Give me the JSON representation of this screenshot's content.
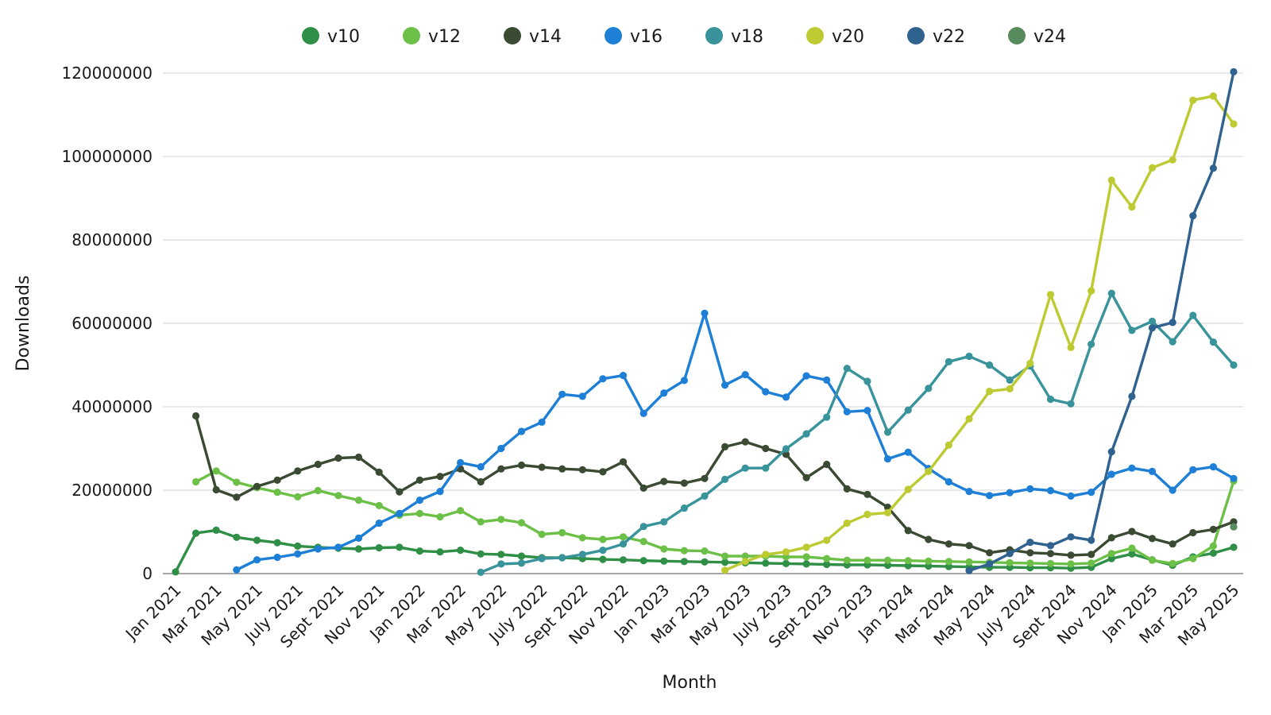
{
  "chart_data": {
    "type": "line",
    "title": "",
    "xlabel": "Month",
    "ylabel": "Downloads",
    "legend_position": "top",
    "grid": "horizontal",
    "ylim": [
      0,
      120000000
    ],
    "y_tick_values": [
      "0",
      "20000000",
      "40000000",
      "60000000",
      "80000000",
      "100000000",
      "120000000"
    ],
    "x_tick_labels": [
      "Jan 2021",
      "Mar 2021",
      "May 2021",
      "July 2021",
      "Sept 2021",
      "Nov 2021",
      "Jan 2022",
      "Mar 2022",
      "May 2022",
      "July 2022",
      "Sept 2022",
      "Nov 2022",
      "Jan 2023",
      "Mar 2023",
      "May 2023",
      "July 2023",
      "Sept 2023",
      "Nov 2023",
      "Jan 2024",
      "Mar 2024",
      "May 2024",
      "July 2024",
      "Sept 2024",
      "Nov 2024",
      "Jan 2025",
      "Mar 2025",
      "May 2025"
    ],
    "months": [
      "Jan 2021",
      "Feb 2021",
      "Mar 2021",
      "Apr 2021",
      "May 2021",
      "Jun 2021",
      "Jul 2021",
      "Aug 2021",
      "Sep 2021",
      "Oct 2021",
      "Nov 2021",
      "Dec 2021",
      "Jan 2022",
      "Feb 2022",
      "Mar 2022",
      "Apr 2022",
      "May 2022",
      "Jun 2022",
      "Jul 2022",
      "Aug 2022",
      "Sep 2022",
      "Oct 2022",
      "Nov 2022",
      "Dec 2022",
      "Jan 2023",
      "Feb 2023",
      "Mar 2023",
      "Apr 2023",
      "May 2023",
      "Jun 2023",
      "Jul 2023",
      "Aug 2023",
      "Sep 2023",
      "Oct 2023",
      "Nov 2023",
      "Dec 2023",
      "Jan 2024",
      "Feb 2024",
      "Mar 2024",
      "Apr 2024",
      "May 2024",
      "Jun 2024",
      "Jul 2024",
      "Aug 2024",
      "Sep 2024",
      "Oct 2024",
      "Nov 2024",
      "Dec 2024",
      "Jan 2025",
      "Feb 2025",
      "Mar 2025",
      "Apr 2025",
      "May 2025"
    ],
    "values_unit": "millions_of_downloads",
    "series": [
      {
        "name": "v10",
        "color": "#2f8f46",
        "values": [
          0.4,
          9.7,
          10.4,
          8.7,
          8.0,
          7.4,
          6.6,
          6.3,
          6.1,
          5.9,
          6.2,
          6.3,
          5.4,
          5.2,
          5.6,
          4.7,
          4.6,
          4.2,
          3.8,
          3.8,
          3.6,
          3.4,
          3.3,
          3.1,
          3.0,
          2.9,
          2.8,
          2.7,
          2.6,
          2.5,
          2.4,
          2.3,
          2.2,
          2.1,
          2.1,
          2.0,
          1.9,
          1.8,
          1.7,
          1.6,
          1.5,
          1.5,
          1.4,
          1.4,
          1.3,
          1.5,
          3.6,
          4.7,
          3.3,
          2.0,
          4.0,
          4.9,
          6.3
        ]
      },
      {
        "name": "v12",
        "color": "#6cbf47",
        "values": [
          null,
          22.0,
          24.6,
          21.9,
          20.6,
          19.5,
          18.4,
          19.9,
          18.7,
          17.6,
          16.3,
          14.0,
          14.4,
          13.6,
          15.1,
          12.4,
          13.0,
          12.2,
          9.4,
          9.8,
          8.6,
          8.2,
          8.8,
          7.7,
          5.9,
          5.5,
          5.4,
          4.2,
          4.2,
          4.2,
          4.0,
          4.0,
          3.6,
          3.2,
          3.2,
          3.2,
          3.1,
          3.0,
          2.9,
          2.8,
          2.7,
          2.6,
          2.5,
          2.4,
          2.3,
          2.5,
          4.8,
          6.1,
          3.2,
          2.4,
          3.6,
          6.6,
          22.2
        ]
      },
      {
        "name": "v14",
        "color": "#3b4a33",
        "values": [
          null,
          37.8,
          20.1,
          18.3,
          20.9,
          22.4,
          24.6,
          26.2,
          27.7,
          27.9,
          24.3,
          19.6,
          22.4,
          23.3,
          25.1,
          22.0,
          25.1,
          26.0,
          25.5,
          25.1,
          24.9,
          24.4,
          26.8,
          20.5,
          22.1,
          21.7,
          22.8,
          30.4,
          31.6,
          30.0,
          28.6,
          23.0,
          26.2,
          20.3,
          19.0,
          15.9,
          10.3,
          8.2,
          7.1,
          6.7,
          5.0,
          5.7,
          5.0,
          4.8,
          4.4,
          4.6,
          8.6,
          10.1,
          8.4,
          7.1,
          9.8,
          10.6,
          12.4
        ]
      },
      {
        "name": "v16",
        "color": "#1d7fd6",
        "values": [
          null,
          null,
          null,
          0.9,
          3.3,
          3.9,
          4.7,
          5.9,
          6.3,
          8.5,
          12.1,
          14.4,
          17.6,
          19.7,
          26.6,
          25.6,
          30.0,
          34.1,
          36.3,
          43.0,
          42.5,
          46.7,
          47.5,
          38.4,
          43.3,
          46.3,
          62.4,
          45.2,
          47.7,
          43.6,
          42.3,
          47.4,
          46.4,
          38.8,
          39.1,
          27.5,
          29.1,
          25.2,
          22.0,
          19.7,
          18.7,
          19.4,
          20.3,
          19.9,
          18.6,
          19.5,
          23.8,
          25.3,
          24.5,
          20.0,
          24.9,
          25.6,
          22.8
        ]
      },
      {
        "name": "v18",
        "color": "#38939b",
        "values": [
          null,
          null,
          null,
          null,
          null,
          null,
          null,
          null,
          null,
          null,
          null,
          null,
          null,
          null,
          null,
          0.3,
          2.3,
          2.5,
          3.6,
          3.8,
          4.6,
          5.6,
          7.1,
          11.3,
          12.4,
          15.7,
          18.6,
          22.6,
          25.3,
          25.3,
          29.9,
          33.5,
          37.5,
          49.2,
          46.1,
          33.9,
          39.2,
          44.4,
          50.8,
          52.1,
          50.0,
          46.4,
          49.8,
          41.8,
          40.7,
          55.0,
          67.2,
          58.3,
          60.5,
          55.6,
          61.9,
          55.5,
          50.0
        ]
      },
      {
        "name": "v20",
        "color": "#bdca32",
        "values": [
          null,
          null,
          null,
          null,
          null,
          null,
          null,
          null,
          null,
          null,
          null,
          null,
          null,
          null,
          null,
          null,
          null,
          null,
          null,
          null,
          null,
          null,
          null,
          null,
          null,
          null,
          null,
          0.8,
          2.9,
          4.6,
          5.2,
          6.3,
          8.0,
          12.1,
          14.2,
          14.6,
          20.2,
          24.5,
          30.8,
          37.1,
          43.7,
          44.3,
          50.4,
          66.9,
          54.2,
          67.8,
          94.3,
          87.9,
          97.3,
          99.2,
          113.5,
          114.5,
          107.8
        ]
      },
      {
        "name": "v22",
        "color": "#2f628f",
        "values": [
          null,
          null,
          null,
          null,
          null,
          null,
          null,
          null,
          null,
          null,
          null,
          null,
          null,
          null,
          null,
          null,
          null,
          null,
          null,
          null,
          null,
          null,
          null,
          null,
          null,
          null,
          null,
          null,
          null,
          null,
          null,
          null,
          null,
          null,
          null,
          null,
          null,
          null,
          null,
          0.7,
          2.3,
          4.8,
          7.5,
          6.7,
          8.8,
          8.0,
          29.2,
          42.5,
          58.9,
          60.2,
          85.8,
          97.2,
          120.3
        ]
      },
      {
        "name": "v24",
        "color": "#578a5c",
        "values": [
          null,
          null,
          null,
          null,
          null,
          null,
          null,
          null,
          null,
          null,
          null,
          null,
          null,
          null,
          null,
          null,
          null,
          null,
          null,
          null,
          null,
          null,
          null,
          null,
          null,
          null,
          null,
          null,
          null,
          null,
          null,
          null,
          null,
          null,
          null,
          null,
          null,
          null,
          null,
          null,
          null,
          null,
          null,
          null,
          null,
          null,
          null,
          null,
          null,
          null,
          null,
          null,
          11.2
        ]
      }
    ]
  }
}
